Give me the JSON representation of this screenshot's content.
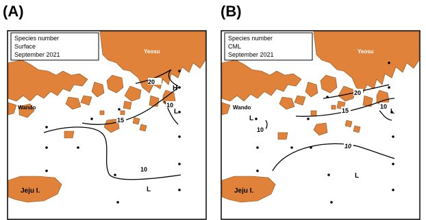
{
  "panels": [
    {
      "letter": "(A)",
      "info": [
        "Species number",
        "Surface",
        "September 2021"
      ],
      "places": {
        "yeosu": "Yeosu",
        "wando": "Wando",
        "jeju": "Jeju I."
      },
      "contour_labels": [
        "20",
        "15",
        "10",
        "10"
      ],
      "extrema": [
        "H",
        "L",
        "L"
      ]
    },
    {
      "letter": "(B)",
      "info": [
        "Species number",
        "CML",
        "September 2021"
      ],
      "places": {
        "yeosu": "Yeosu",
        "wando": "Wando",
        "jeju": "Jeju I."
      },
      "contour_labels": [
        "20",
        "15",
        "10",
        "10",
        "10"
      ],
      "extrema": [
        "L",
        "L",
        "L"
      ]
    }
  ],
  "colors": {
    "land": "#e0823a",
    "land_edge": "#8a4a17",
    "line": "#000000"
  }
}
